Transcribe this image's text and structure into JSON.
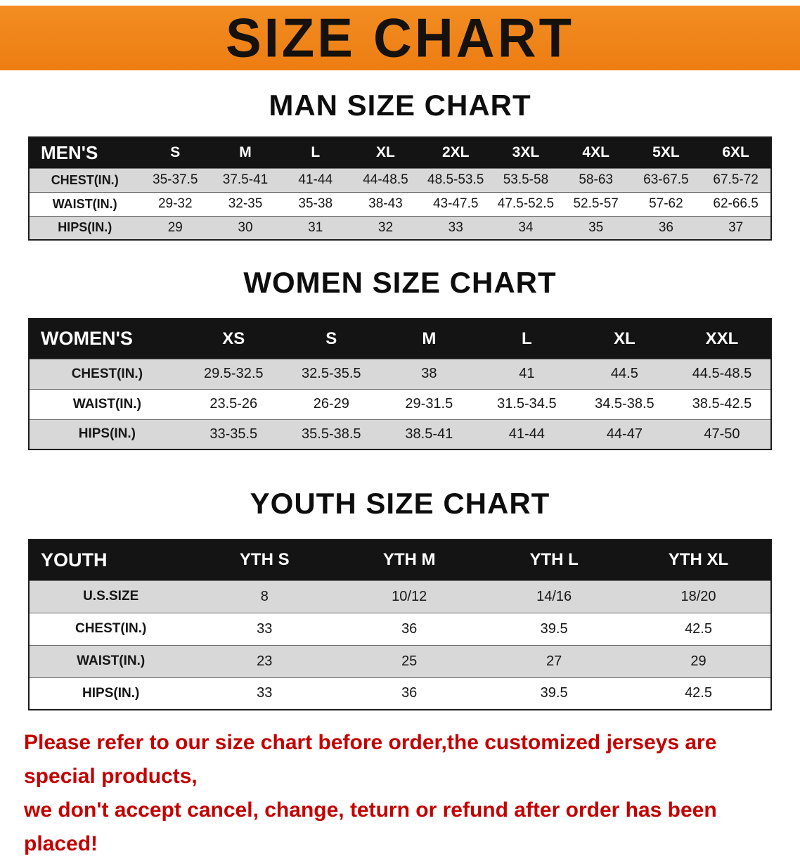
{
  "banner": {
    "title": "SIZE CHART",
    "bg_color": "#ee8018"
  },
  "chart_data": [
    {
      "type": "table",
      "title": "MAN SIZE CHART",
      "columns": [
        "MEN'S",
        "S",
        "M",
        "L",
        "XL",
        "2XL",
        "3XL",
        "4XL",
        "5XL",
        "6XL"
      ],
      "rows": [
        [
          "CHEST(IN.)",
          "35-37.5",
          "37.5-41",
          "41-44",
          "44-48.5",
          "48.5-53.5",
          "53.5-58",
          "58-63",
          "63-67.5",
          "67.5-72"
        ],
        [
          "WAIST(IN.)",
          "29-32",
          "32-35",
          "35-38",
          "38-43",
          "43-47.5",
          "47.5-52.5",
          "52.5-57",
          "57-62",
          "62-66.5"
        ],
        [
          "HIPS(IN.)",
          "29",
          "30",
          "31",
          "32",
          "33",
          "34",
          "35",
          "36",
          "37"
        ]
      ]
    },
    {
      "type": "table",
      "title": "WOMEN SIZE CHART",
      "columns": [
        "WOMEN'S",
        "XS",
        "S",
        "M",
        "L",
        "XL",
        "XXL"
      ],
      "rows": [
        [
          "CHEST(IN.)",
          "29.5-32.5",
          "32.5-35.5",
          "38",
          "41",
          "44.5",
          "44.5-48.5"
        ],
        [
          "WAIST(IN.)",
          "23.5-26",
          "26-29",
          "29-31.5",
          "31.5-34.5",
          "34.5-38.5",
          "38.5-42.5"
        ],
        [
          "HIPS(IN.)",
          "33-35.5",
          "35.5-38.5",
          "38.5-41",
          "41-44",
          "44-47",
          "47-50"
        ]
      ]
    },
    {
      "type": "table",
      "title": "YOUTH SIZE CHART",
      "columns": [
        "YOUTH",
        "YTH S",
        "YTH M",
        "YTH L",
        "YTH XL"
      ],
      "rows": [
        [
          "U.S.SIZE",
          "8",
          "10/12",
          "14/16",
          "18/20"
        ],
        [
          "CHEST(IN.)",
          "33",
          "36",
          "39.5",
          "42.5"
        ],
        [
          "WAIST(IN.)",
          "23",
          "25",
          "27",
          "29"
        ],
        [
          "HIPS(IN.)",
          "33",
          "36",
          "39.5",
          "42.5"
        ]
      ]
    }
  ],
  "disclaimer": {
    "line1": "Please refer to our size chart before order,the customized jerseys are special products,",
    "line2": "we don't accept cancel, change, teturn or refund after order has been placed!",
    "color": "#c40000"
  }
}
